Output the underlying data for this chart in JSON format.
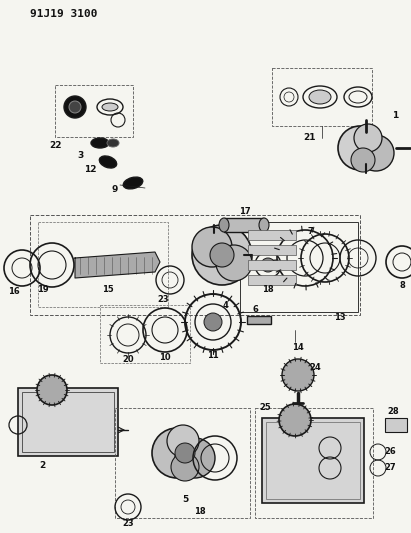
{
  "title": "91J19 3100",
  "bg": "#f5f5f0",
  "fg": "#1a1a1a",
  "fig_w": 4.11,
  "fig_h": 5.33,
  "dpi": 100
}
